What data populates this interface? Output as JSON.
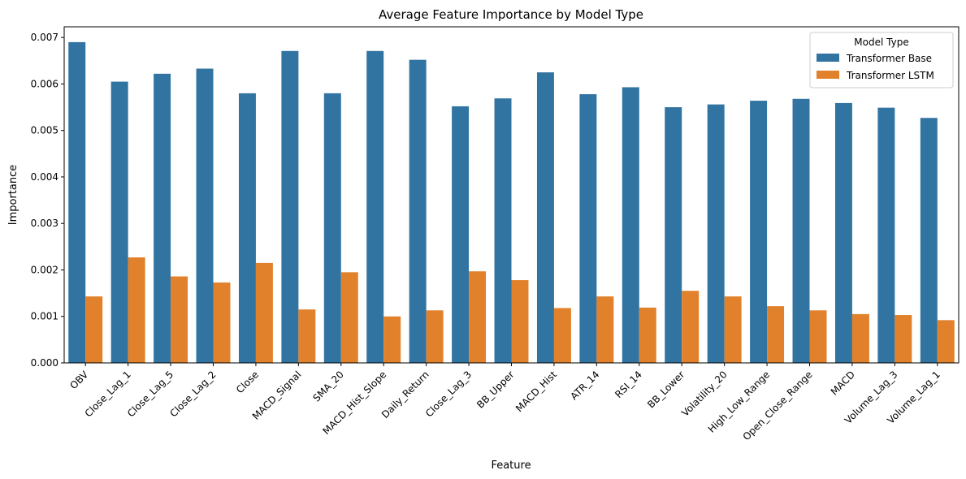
{
  "chart_data": {
    "type": "bar",
    "title": "Average Feature Importance by Model Type",
    "xlabel": "Feature",
    "ylabel": "Importance",
    "ylim": [
      0,
      0.00723
    ],
    "yticks": [
      "0.000",
      "0.001",
      "0.002",
      "0.003",
      "0.004",
      "0.005",
      "0.006",
      "0.007"
    ],
    "grid": false,
    "legend_placement": "top-right",
    "legend_title": "Model Type",
    "categories": [
      "OBV",
      "Close_Lag_1",
      "Close_Lag_5",
      "Close_Lag_2",
      "Close",
      "MACD_Signal",
      "SMA_20",
      "MACD_Hist_Slope",
      "Daily_Return",
      "Close_Lag_3",
      "BB_Upper",
      "MACD_Hist",
      "ATR_14",
      "RSI_14",
      "BB_Lower",
      "Volatility_20",
      "High_Low_Range",
      "Open_Close_Range",
      "MACD",
      "Volume_Lag_3",
      "Volume_Lag_1"
    ],
    "series": [
      {
        "name": "Transformer Base",
        "color": "#3274a1",
        "values": [
          0.0069,
          0.00605,
          0.00622,
          0.00633,
          0.0058,
          0.00671,
          0.0058,
          0.00671,
          0.00652,
          0.00552,
          0.00569,
          0.00625,
          0.00578,
          0.00593,
          0.0055,
          0.00556,
          0.00564,
          0.00568,
          0.00559,
          0.00549,
          0.00527
        ]
      },
      {
        "name": "Transformer LSTM",
        "color": "#e1812c",
        "values": [
          0.00143,
          0.00227,
          0.00186,
          0.00173,
          0.00215,
          0.00115,
          0.00195,
          0.001,
          0.00113,
          0.00197,
          0.00178,
          0.00118,
          0.00143,
          0.00119,
          0.00155,
          0.00143,
          0.00122,
          0.00113,
          0.00105,
          0.00103,
          0.00092
        ]
      }
    ]
  }
}
